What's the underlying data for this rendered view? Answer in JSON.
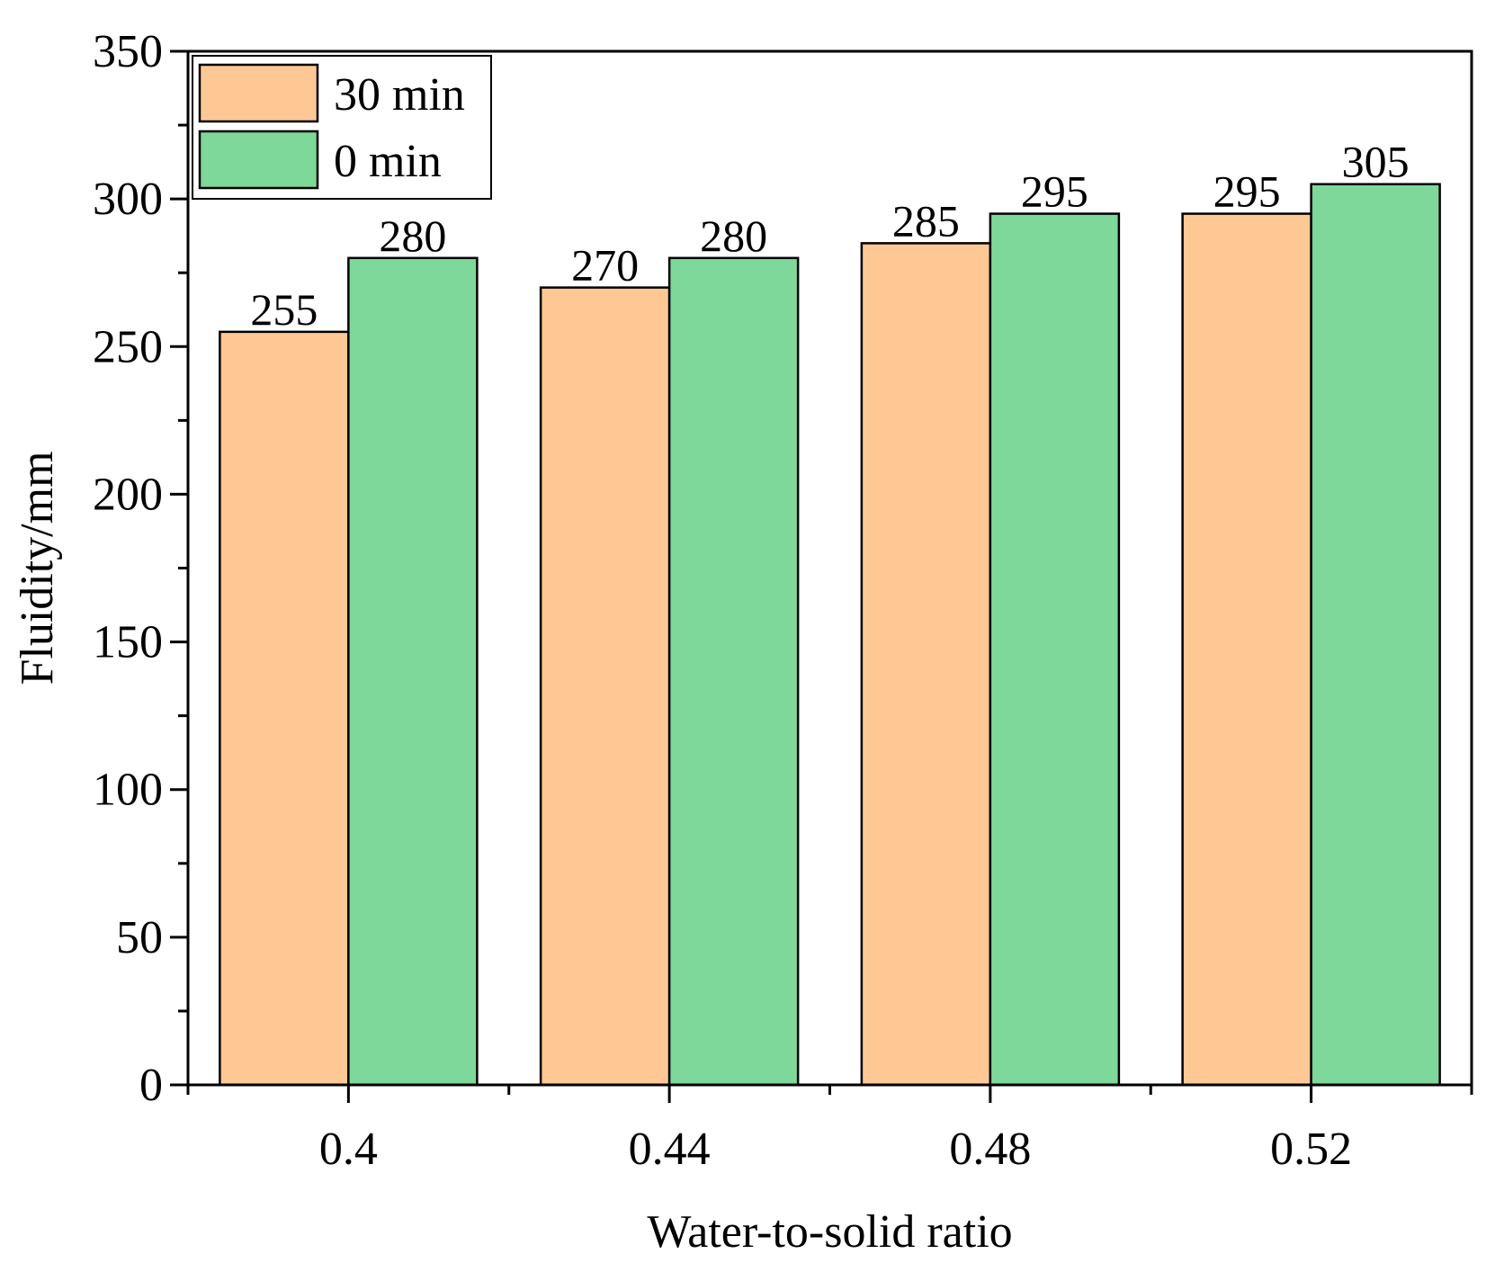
{
  "chart_data": {
    "type": "bar",
    "title": "",
    "xlabel": "Water-to-solid ratio",
    "ylabel": "Fluidity/mm",
    "categories": [
      "0.4",
      "0.44",
      "0.48",
      "0.52"
    ],
    "ylim": [
      0,
      350
    ],
    "yticks": [
      0,
      50,
      100,
      150,
      200,
      250,
      300,
      350
    ],
    "ytick_labels": [
      "0",
      "50",
      "100",
      "150",
      "200",
      "250",
      "300",
      "350"
    ],
    "minor_ytick_step": 25,
    "series": [
      {
        "name": "30 min",
        "color": "#FEC895",
        "values": [
          255,
          270,
          285,
          295
        ],
        "labels": [
          "255",
          "270",
          "285",
          "295"
        ]
      },
      {
        "name": "0 min",
        "color": "#7ED899",
        "values": [
          280,
          280,
          295,
          305
        ],
        "labels": [
          "280",
          "280",
          "295",
          "305"
        ]
      }
    ],
    "legend": {
      "position": "top-left",
      "order": [
        "30 min",
        "0 min"
      ]
    },
    "grid": false
  }
}
